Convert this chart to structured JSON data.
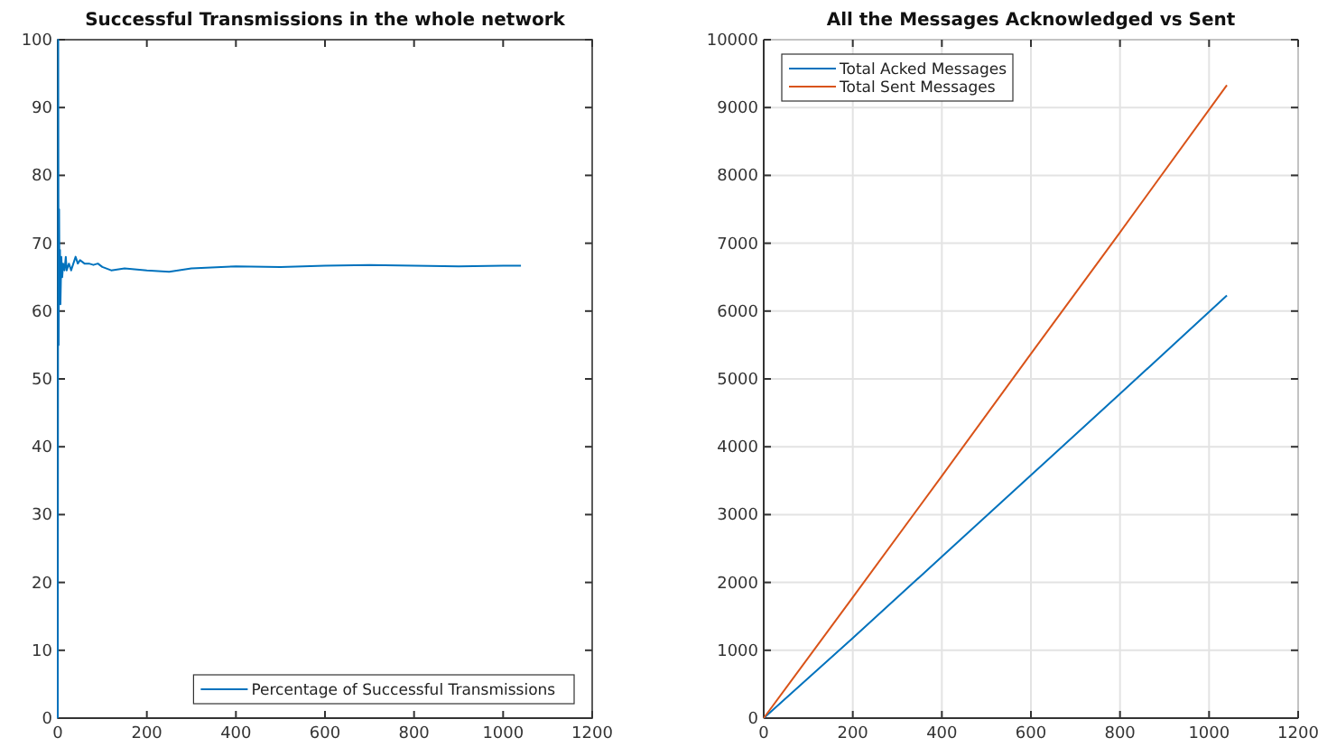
{
  "chart_data": [
    {
      "type": "line",
      "title": "Successful Transmissions in the whole network",
      "xlim": [
        0,
        1200
      ],
      "xticks": [
        0,
        200,
        400,
        600,
        800,
        1000,
        1200
      ],
      "ylim": [
        0,
        100
      ],
      "yticks": [
        0,
        10,
        20,
        30,
        40,
        50,
        60,
        70,
        80,
        90,
        100
      ],
      "grid": false,
      "legend": "bottom right",
      "series": [
        {
          "name": "Percentage of Successful Transmissions",
          "color": "#0072bd",
          "x": [
            0,
            1,
            2,
            3,
            4,
            5,
            6,
            8,
            10,
            12,
            15,
            18,
            20,
            25,
            30,
            35,
            40,
            45,
            50,
            60,
            70,
            80,
            90,
            100,
            120,
            150,
            200,
            250,
            300,
            400,
            500,
            600,
            700,
            800,
            900,
            1000,
            1040
          ],
          "values": [
            0,
            100,
            55,
            75,
            62,
            69,
            61,
            68,
            65,
            67,
            66,
            68,
            66,
            67,
            66,
            67,
            68,
            67,
            67.5,
            67,
            67,
            66.8,
            67,
            66.5,
            66,
            66.3,
            66,
            65.8,
            66.3,
            66.6,
            66.5,
            66.7,
            66.8,
            66.7,
            66.6,
            66.7,
            66.7
          ]
        }
      ]
    },
    {
      "type": "line",
      "title": "All the Messages Acknowledged vs Sent",
      "xlim": [
        0,
        1200
      ],
      "xticks": [
        0,
        200,
        400,
        600,
        800,
        1000,
        1200
      ],
      "ylim": [
        0,
        10000
      ],
      "yticks": [
        0,
        1000,
        2000,
        3000,
        4000,
        5000,
        6000,
        7000,
        8000,
        9000,
        10000
      ],
      "grid": true,
      "legend": "top left",
      "series": [
        {
          "name": "Total Acked Messages",
          "color": "#0072bd",
          "x": [
            0,
            200,
            400,
            600,
            800,
            1040
          ],
          "values": [
            0,
            1180,
            2380,
            3580,
            4780,
            6230
          ]
        },
        {
          "name": "Total Sent Messages",
          "color": "#d95319",
          "x": [
            0,
            200,
            400,
            600,
            800,
            1040
          ],
          "values": [
            0,
            1780,
            3570,
            5370,
            7160,
            9330
          ]
        }
      ]
    }
  ]
}
